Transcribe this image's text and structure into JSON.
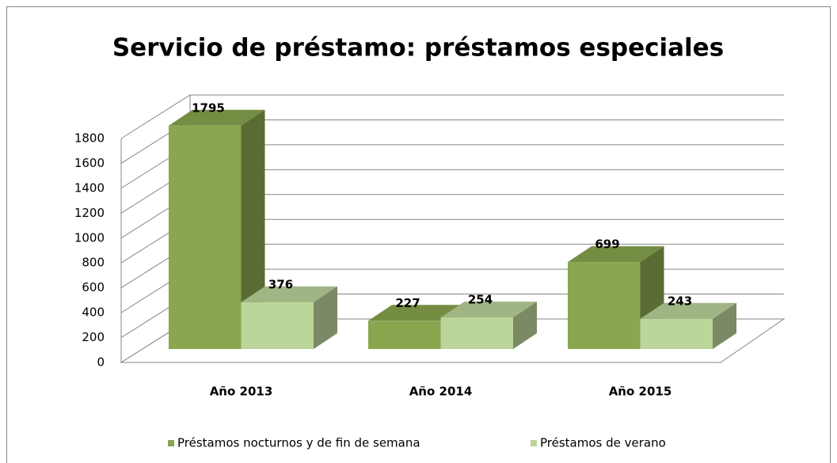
{
  "chart_data": {
    "type": "bar3d",
    "title": "Servicio de préstamo: préstamos especiales",
    "categories": [
      "Año 2013",
      "Año 2014",
      "Año 2015"
    ],
    "series": [
      {
        "name": "Préstamos nocturnos y de fin de semana",
        "color": "#8aa64f",
        "values": [
          1795,
          227,
          699
        ]
      },
      {
        "name": "Préstamos de verano",
        "color": "#bcd59a",
        "values": [
          376,
          254,
          243
        ]
      }
    ],
    "ylim": [
      0,
      1800
    ],
    "yticks": [
      0,
      200,
      400,
      600,
      800,
      1000,
      1200,
      1400,
      1600,
      1800
    ],
    "grid": true,
    "legend": "bottom"
  }
}
